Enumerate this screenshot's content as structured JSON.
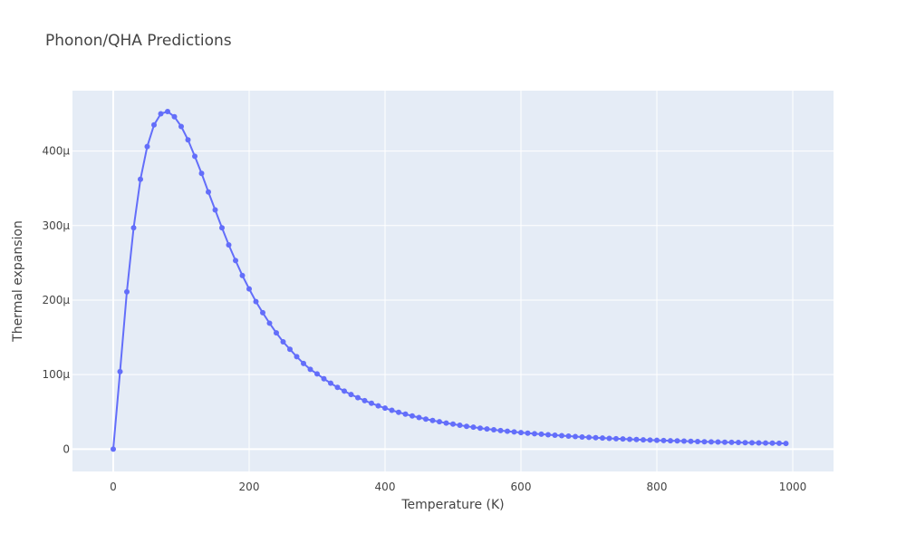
{
  "chart_data": {
    "type": "line",
    "title": "Phonon/QHA Predictions",
    "xlabel": "Temperature (K)",
    "ylabel": "Thermal expansion",
    "xlim": [
      -60,
      1060
    ],
    "ylim": [
      -3e-05,
      0.000481
    ],
    "x_ticks": [
      0,
      200,
      400,
      600,
      800,
      1000
    ],
    "x_tick_labels": [
      "0",
      "200",
      "400",
      "600",
      "800",
      "1000"
    ],
    "y_ticks": [
      0,
      0.0001,
      0.0002,
      0.0003,
      0.0004
    ],
    "y_tick_labels": [
      "0",
      "100μ",
      "200μ",
      "300μ",
      "400μ"
    ],
    "grid": true,
    "series": [
      {
        "color": "#636efa",
        "mode": "lines+markers",
        "x": [
          0,
          10,
          20,
          30,
          40,
          50,
          60,
          70,
          80,
          90,
          100,
          110,
          120,
          130,
          140,
          150,
          160,
          170,
          180,
          190,
          200,
          210,
          220,
          230,
          240,
          250,
          260,
          270,
          280,
          290,
          300,
          310,
          320,
          330,
          340,
          350,
          360,
          370,
          380,
          390,
          400,
          410,
          420,
          430,
          440,
          450,
          460,
          470,
          480,
          490,
          500,
          510,
          520,
          530,
          540,
          550,
          560,
          570,
          580,
          590,
          600,
          610,
          620,
          630,
          640,
          650,
          660,
          670,
          680,
          690,
          700,
          710,
          720,
          730,
          740,
          750,
          760,
          770,
          780,
          790,
          800,
          810,
          820,
          830,
          840,
          850,
          860,
          870,
          880,
          890,
          900,
          910,
          920,
          930,
          940,
          950,
          960,
          970,
          980,
          990
        ],
        "y": [
          0,
          0.000104,
          0.000211,
          0.000297,
          0.000362,
          0.000406,
          0.000435,
          0.00045,
          0.000453,
          0.000446,
          0.000433,
          0.000415,
          0.000393,
          0.00037,
          0.000345,
          0.000321,
          0.000297,
          0.000274,
          0.000253,
          0.000233,
          0.000215,
          0.000198,
          0.000183,
          0.000169,
          0.000156,
          0.000144,
          0.000134,
          0.000124,
          0.000115,
          0.000107,
          0.000101,
          9.44e-05,
          8.84e-05,
          8.29e-05,
          7.79e-05,
          7.33e-05,
          6.9e-05,
          6.51e-05,
          6.15e-05,
          5.81e-05,
          5.5e-05,
          5.21e-05,
          4.94e-05,
          4.69e-05,
          4.45e-05,
          4.24e-05,
          4.03e-05,
          3.84e-05,
          3.67e-05,
          3.5e-05,
          3.35e-05,
          3.2e-05,
          3.06e-05,
          2.94e-05,
          2.81e-05,
          2.7e-05,
          2.59e-05,
          2.49e-05,
          2.4e-05,
          2.31e-05,
          2.22e-05,
          2.14e-05,
          2.07e-05,
          2e-05,
          1.93e-05,
          1.86e-05,
          1.8e-05,
          1.74e-05,
          1.69e-05,
          1.63e-05,
          1.58e-05,
          1.53e-05,
          1.49e-05,
          1.44e-05,
          1.4e-05,
          1.36e-05,
          1.32e-05,
          1.29e-05,
          1.25e-05,
          1.22e-05,
          1.18e-05,
          1.15e-05,
          1.12e-05,
          1.1e-05,
          1.07e-05,
          1.04e-05,
          1.02e-05,
          9.9e-06,
          9.7e-06,
          9.5e-06,
          9.3e-06,
          9.1e-06,
          8.9e-06,
          8.7e-06,
          8.5e-06,
          8.3e-06,
          8.1e-06,
          8e-06,
          7.8e-06,
          7.6e-06
        ]
      }
    ]
  }
}
